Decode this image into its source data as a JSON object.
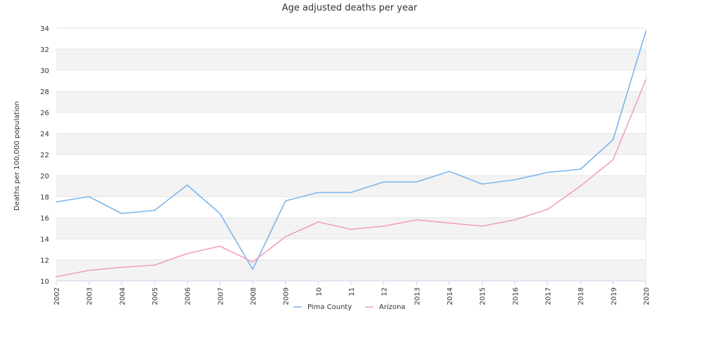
{
  "chart_data": {
    "type": "line",
    "title": "Age adjusted deaths per year",
    "xlabel": "",
    "ylabel": "Deaths per 100,000 population",
    "x": [
      "2002",
      "2003",
      "2004",
      "2005",
      "2006",
      "2007",
      "2008",
      "2009",
      "10",
      "11",
      "12",
      "2013",
      "2014",
      "2015",
      "2016",
      "2017",
      "2018",
      "2019",
      "2020"
    ],
    "ylim": [
      10,
      34
    ],
    "yticks": [
      10,
      12,
      14,
      16,
      18,
      20,
      22,
      24,
      26,
      28,
      30,
      32,
      34
    ],
    "grid": true,
    "legend_position": "bottom-center",
    "series": [
      {
        "name": "Pima County",
        "color": "#7cb5ec",
        "values": [
          17.5,
          18.0,
          16.4,
          16.7,
          19.1,
          16.4,
          11.1,
          17.6,
          18.4,
          18.4,
          19.4,
          19.4,
          20.4,
          19.2,
          19.6,
          20.3,
          20.6,
          23.4,
          33.7
        ]
      },
      {
        "name": "Arizona",
        "color": "#f19ec2",
        "values": [
          10.4,
          11.0,
          11.3,
          11.5,
          12.6,
          13.3,
          11.8,
          14.2,
          15.6,
          14.9,
          15.2,
          15.8,
          15.5,
          15.2,
          15.8,
          16.8,
          19.0,
          21.5,
          29.1
        ]
      }
    ]
  }
}
